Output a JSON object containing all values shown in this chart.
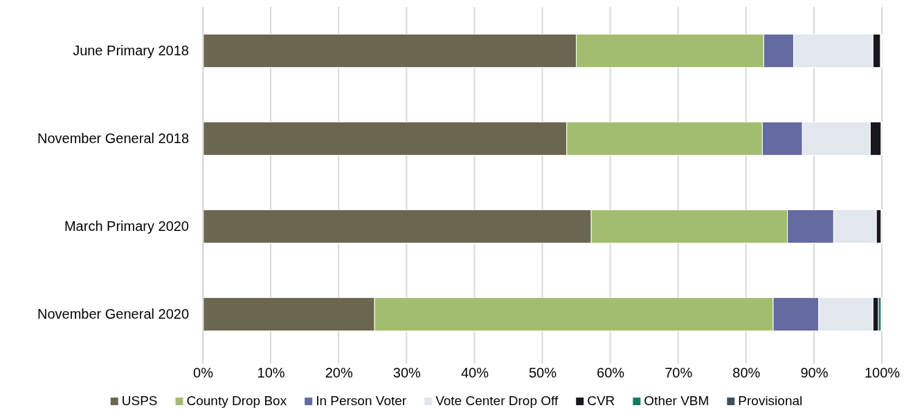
{
  "chart_data": {
    "type": "bar",
    "orientation": "horizontal",
    "stacked": true,
    "categories": [
      "June Primary 2018",
      "November General 2018",
      "March Primary 2020",
      "November General 2020"
    ],
    "series": [
      {
        "name": "USPS",
        "color": "#6b6650",
        "values": [
          55.0,
          53.6,
          57.2,
          25.3
        ]
      },
      {
        "name": "County Drop Box",
        "color": "#a2bd6f",
        "values": [
          27.6,
          28.8,
          28.9,
          58.7
        ]
      },
      {
        "name": "In Person Voter",
        "color": "#636ba1",
        "values": [
          4.4,
          5.9,
          6.8,
          6.7
        ]
      },
      {
        "name": "Vote Center Drop Off",
        "color": "#e2e7ee",
        "values": [
          11.7,
          10.0,
          6.3,
          8.0
        ]
      },
      {
        "name": "CVR",
        "color": "#19171e",
        "values": [
          1.1,
          1.6,
          0.7,
          0.8
        ]
      },
      {
        "name": "Other VBM",
        "color": "#127a66",
        "values": [
          0.1,
          0.1,
          0.1,
          0.4
        ]
      },
      {
        "name": "Provisional",
        "color": "#3d4f5e",
        "values": [
          0.1,
          0.0,
          0.0,
          0.1
        ]
      }
    ],
    "xlim": [
      0,
      100
    ],
    "xticks": [
      {
        "value": 0,
        "label": "0%"
      },
      {
        "value": 10,
        "label": "10%"
      },
      {
        "value": 20,
        "label": "20%"
      },
      {
        "value": 30,
        "label": "30%"
      },
      {
        "value": 40,
        "label": "40%"
      },
      {
        "value": 50,
        "label": "50%"
      },
      {
        "value": 60,
        "label": "60%"
      },
      {
        "value": 70,
        "label": "70%"
      },
      {
        "value": 80,
        "label": "80%"
      },
      {
        "value": 90,
        "label": "90%"
      },
      {
        "value": 100,
        "label": "100%"
      }
    ],
    "grid": "x",
    "legend": "bottom"
  }
}
